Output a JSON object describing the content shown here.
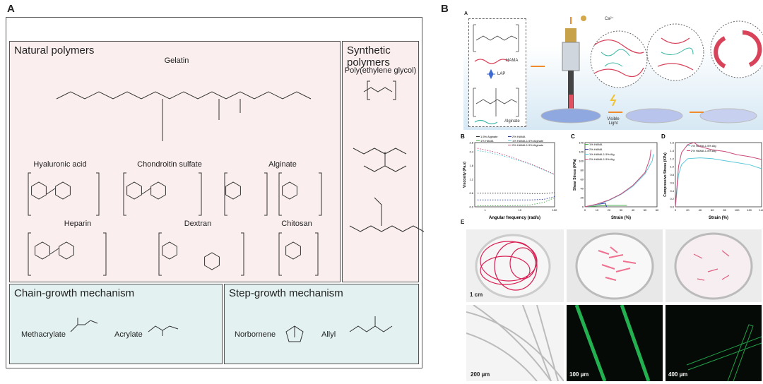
{
  "panel_a": {
    "label": "A",
    "natural": {
      "title": "Natural polymers",
      "molecules": [
        "Gelatin",
        "Hyaluronic acid",
        "Chondroitin sulfate",
        "Alginate",
        "Heparin",
        "Dextran",
        "Chitosan"
      ]
    },
    "synthetic": {
      "title": "Synthetic polymers",
      "molecules": [
        "Poly(ethylene glycol)"
      ]
    },
    "chain": {
      "title": "Chain-growth mechanism",
      "items": [
        "Methacrylate",
        "Acrylate"
      ]
    },
    "step": {
      "title": "Step-growth mechanism",
      "items": [
        "Norbornene",
        "Allyl"
      ]
    }
  },
  "panel_b": {
    "label": "B",
    "schematic": {
      "label": "A",
      "ion": "Ca²⁺",
      "legend": [
        "HAMA",
        "LAP",
        "Alginate"
      ],
      "step_label": "Visible Light"
    },
    "photos": {
      "label": "E",
      "scales": [
        "1 cm",
        "200 µm",
        "100 µm",
        "400 µm"
      ]
    }
  },
  "colors": {
    "pink_box": "#fbeeee",
    "teal_box": "#e3f1f1",
    "hama": "#d9435a",
    "alginate": "#3fb8a8",
    "fluorescence": "#22c55e"
  },
  "chart_data": [
    {
      "label": "B",
      "type": "line",
      "xlabel": "Angular frequency (rad/s)",
      "ylabel": "Viscosity (Pa.s)",
      "xscale": "log",
      "xlim": [
        0.5,
        100
      ],
      "ylim": [
        0,
        2.8
      ],
      "yticks": [
        "0.0",
        "0.6",
        "1.2",
        "1.8",
        "2.4",
        "2.8"
      ],
      "xticks": [
        "1",
        "10",
        "100"
      ],
      "legend_placement": "top",
      "x": [
        0.6,
        1,
        2,
        5,
        10,
        20,
        50,
        100
      ],
      "series": [
        {
          "name": "1.5% Alginate",
          "color": "#333333",
          "values": [
            0.6,
            0.6,
            0.6,
            0.6,
            0.6,
            0.58,
            0.58,
            0.62
          ]
        },
        {
          "name": "2% HAMA",
          "color": "#2d3fa0",
          "values": [
            0.3,
            0.3,
            0.3,
            0.3,
            0.3,
            0.3,
            0.33,
            0.45
          ]
        },
        {
          "name": "1% HAMA",
          "color": "#4caf50",
          "values": [
            0.05,
            0.05,
            0.05,
            0.05,
            0.06,
            0.08,
            0.2,
            0.4
          ]
        },
        {
          "name": "1% HAMA-1.5% Alginate",
          "color": "#5bc8d8",
          "values": [
            2.45,
            2.4,
            2.3,
            2.15,
            2.0,
            1.85,
            1.6,
            1.4
          ]
        },
        {
          "name": "2% HAMA-1.5% Alginate",
          "color": "#c94a7a",
          "values": [
            2.55,
            2.48,
            2.38,
            2.2,
            2.03,
            1.87,
            1.62,
            1.42
          ]
        }
      ]
    },
    {
      "label": "C",
      "type": "line",
      "xlabel": "Strain (%)",
      "ylabel": "Shear Stress (KPa)",
      "xlim": [
        0,
        60
      ],
      "ylim": [
        0,
        140
      ],
      "xticks": [
        "0",
        "10",
        "20",
        "30",
        "40",
        "50",
        "60"
      ],
      "yticks": [
        "0",
        "20",
        "40",
        "60",
        "80",
        "100",
        "120",
        "140"
      ],
      "legend_placement": "top-left",
      "series": [
        {
          "name": "1% HAMA",
          "color": "#4caf50",
          "x": [
            0,
            10,
            20,
            35
          ],
          "values": [
            0,
            2,
            3,
            3
          ]
        },
        {
          "name": "2% HAMA",
          "color": "#2d3fa0",
          "x": [
            0,
            10,
            17,
            18
          ],
          "values": [
            0,
            5,
            8,
            0
          ]
        },
        {
          "name": "1% HAMA-1.5% Alg",
          "color": "#5bc8d8",
          "x": [
            0,
            10,
            20,
            30,
            40,
            50,
            56,
            57
          ],
          "values": [
            0,
            5,
            14,
            27,
            45,
            72,
            100,
            115
          ]
        },
        {
          "name": "2% HAMA-1.5% Alg",
          "color": "#c94a7a",
          "x": [
            0,
            10,
            20,
            30,
            40,
            50,
            54,
            55
          ],
          "values": [
            0,
            6,
            15,
            28,
            47,
            75,
            105,
            125
          ]
        }
      ]
    },
    {
      "label": "D",
      "type": "line",
      "xlabel": "Strain (%)",
      "ylabel": "Compressive Stress (KPa)",
      "xlim": [
        0,
        140
      ],
      "ylim": [
        0,
        1.6
      ],
      "xticks": [
        "0",
        "20",
        "40",
        "60",
        "80",
        "100",
        "120",
        "140"
      ],
      "yticks": [
        "0.0",
        "0.2",
        "0.4",
        "0.6",
        "0.8",
        "1.0",
        "1.2",
        "1.4",
        "1.6"
      ],
      "legend_placement": "top-right",
      "series": [
        {
          "name": "1% HAMA-1.5% Alg",
          "color": "#5bc8d8",
          "x": [
            0,
            5,
            10,
            20,
            40,
            60,
            80,
            100,
            120,
            140
          ],
          "values": [
            0,
            0.8,
            1.05,
            1.2,
            1.22,
            1.2,
            1.15,
            1.1,
            1.05,
            0.95
          ]
        },
        {
          "name": "2% HAMA-1.5% Alg",
          "color": "#c94a7a",
          "x": [
            0,
            5,
            10,
            20,
            30,
            40,
            60,
            80,
            100,
            120,
            140
          ],
          "values": [
            0,
            1.0,
            1.35,
            1.55,
            1.6,
            1.5,
            1.42,
            1.38,
            1.3,
            1.25,
            1.18
          ]
        }
      ]
    }
  ]
}
